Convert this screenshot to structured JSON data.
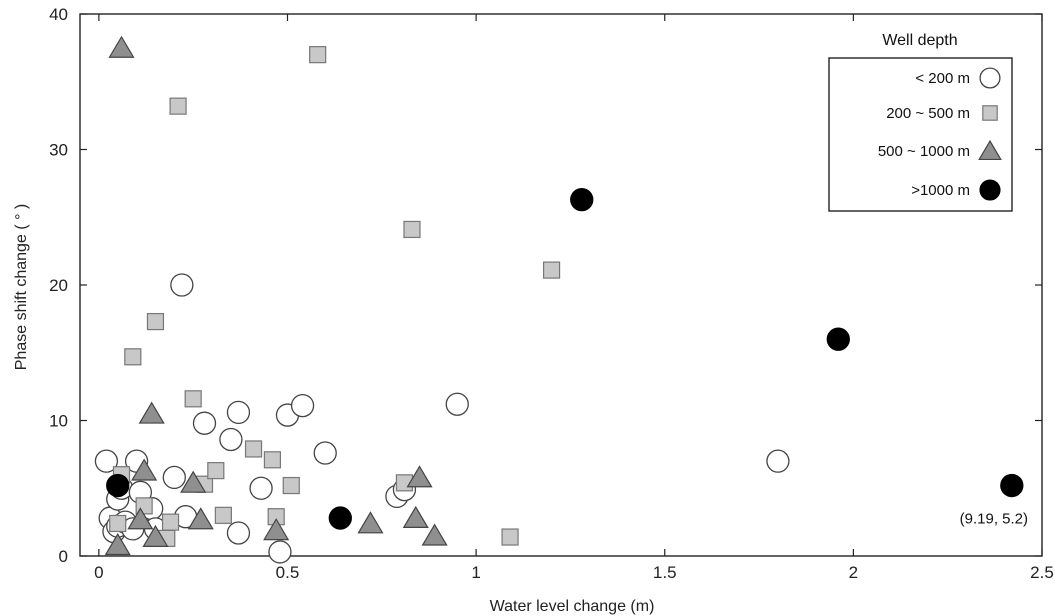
{
  "chart_data": {
    "type": "scatter",
    "title": "",
    "xlabel": "Water level change (m)",
    "ylabel": "Phase shift change ( ° )",
    "xlim": [
      -0.05,
      2.5
    ],
    "ylim": [
      0,
      40
    ],
    "xticks": [
      0,
      0.5,
      1,
      1.5,
      2,
      2.5
    ],
    "xtick_labels": [
      "0",
      "0.5",
      "1",
      "1.5",
      "2",
      "2.5"
    ],
    "yticks": [
      0,
      10,
      20,
      30,
      40
    ],
    "ytick_labels": [
      "0",
      "10",
      "20",
      "30",
      "40"
    ],
    "grid": false,
    "legend": {
      "title": "Well depth",
      "position": "top-right"
    },
    "series": [
      {
        "name": "< 200 m",
        "marker": "circle-open",
        "color": "#ffffff",
        "stroke": "#444444",
        "points": [
          [
            0.02,
            7.0
          ],
          [
            0.03,
            2.8
          ],
          [
            0.04,
            1.8
          ],
          [
            0.05,
            2.2
          ],
          [
            0.05,
            4.2
          ],
          [
            0.06,
            5.0
          ],
          [
            0.07,
            2.5
          ],
          [
            0.09,
            2.0
          ],
          [
            0.1,
            7.0
          ],
          [
            0.11,
            4.7
          ],
          [
            0.14,
            3.5
          ],
          [
            0.15,
            2.0
          ],
          [
            0.2,
            5.8
          ],
          [
            0.22,
            20.0
          ],
          [
            0.23,
            2.9
          ],
          [
            0.28,
            9.8
          ],
          [
            0.35,
            8.6
          ],
          [
            0.37,
            10.6
          ],
          [
            0.37,
            1.7
          ],
          [
            0.43,
            5.0
          ],
          [
            0.48,
            0.3
          ],
          [
            0.5,
            10.4
          ],
          [
            0.54,
            11.1
          ],
          [
            0.6,
            7.6
          ],
          [
            0.79,
            4.4
          ],
          [
            0.81,
            4.9
          ],
          [
            0.95,
            11.2
          ],
          [
            1.8,
            7.0
          ]
        ]
      },
      {
        "name": "200 ~ 500 m",
        "marker": "square",
        "color": "#c8c8c8",
        "stroke": "#777777",
        "points": [
          [
            0.05,
            2.4
          ],
          [
            0.06,
            6.0
          ],
          [
            0.09,
            14.7
          ],
          [
            0.12,
            3.7
          ],
          [
            0.15,
            17.3
          ],
          [
            0.18,
            1.3
          ],
          [
            0.19,
            2.5
          ],
          [
            0.21,
            33.2
          ],
          [
            0.25,
            11.6
          ],
          [
            0.28,
            5.3
          ],
          [
            0.31,
            6.3
          ],
          [
            0.33,
            3.0
          ],
          [
            0.41,
            7.9
          ],
          [
            0.46,
            7.1
          ],
          [
            0.47,
            2.9
          ],
          [
            0.51,
            5.2
          ],
          [
            0.58,
            37.0
          ],
          [
            0.81,
            5.4
          ],
          [
            0.83,
            24.1
          ],
          [
            1.09,
            1.4
          ],
          [
            1.2,
            21.1
          ]
        ]
      },
      {
        "name": "500 ~ 1000 m",
        "marker": "triangle",
        "color": "#8f8f8f",
        "stroke": "#444444",
        "points": [
          [
            0.06,
            37.5
          ],
          [
            0.05,
            0.8
          ],
          [
            0.11,
            2.7
          ],
          [
            0.12,
            6.3
          ],
          [
            0.14,
            10.5
          ],
          [
            0.15,
            1.4
          ],
          [
            0.25,
            5.4
          ],
          [
            0.27,
            2.7
          ],
          [
            0.47,
            1.9
          ],
          [
            0.72,
            2.4
          ],
          [
            0.84,
            2.8
          ],
          [
            0.85,
            5.8
          ],
          [
            0.89,
            1.5
          ]
        ]
      },
      {
        "name": ">1000 m",
        "marker": "circle-filled",
        "color": "#000000",
        "stroke": "#000000",
        "points": [
          [
            0.05,
            5.2
          ],
          [
            0.64,
            2.8
          ],
          [
            1.28,
            26.3
          ],
          [
            1.96,
            16.0
          ],
          [
            2.42,
            5.2
          ]
        ]
      }
    ],
    "annotations": [
      {
        "text": "(9.19, 5.2)",
        "x": 2.42,
        "y": 5.2
      }
    ]
  }
}
